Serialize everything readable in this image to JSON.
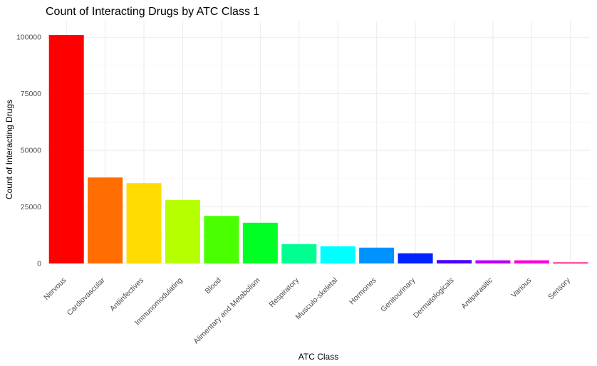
{
  "chart_data": {
    "type": "bar",
    "title": "Count of Interacting Drugs by ATC Class 1",
    "xlabel": "ATC Class",
    "ylabel": "Count of Interacting Drugs",
    "categories": [
      "Nervous",
      "Cardiovascular",
      "Antiinfectives",
      "Immunomodulating",
      "Blood",
      "Alimentary and Metabolism",
      "Respiratory",
      "Musculo-skeletal",
      "Hormones",
      "Genitourinary",
      "Dermatologicals",
      "Antiparasitic",
      "Various",
      "Sensory"
    ],
    "values": [
      101000,
      38000,
      35500,
      28000,
      21000,
      18000,
      8500,
      7600,
      7000,
      4500,
      1500,
      1400,
      1400,
      500
    ],
    "colors": [
      "#ff0000",
      "#ff6d00",
      "#ffdb00",
      "#b6ff00",
      "#49ff00",
      "#00ff24",
      "#00ff92",
      "#00ffff",
      "#0092ff",
      "#0024ff",
      "#4900ff",
      "#b600ff",
      "#ff00db",
      "#ff006d"
    ],
    "ylim": [
      0,
      107000
    ],
    "yticks": [
      0,
      25000,
      50000,
      75000,
      100000
    ],
    "grid": true,
    "legend": "none"
  }
}
